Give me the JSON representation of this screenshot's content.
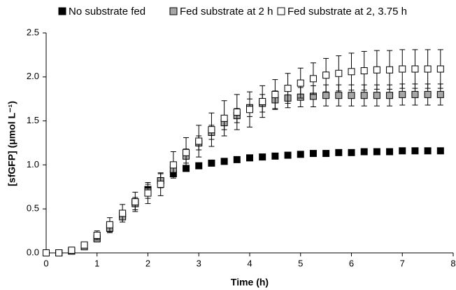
{
  "chart_data": {
    "type": "scatter",
    "xlabel": "Time (h)",
    "ylabel": "[sfGFP] (μmol L⁻¹)",
    "x": [
      0,
      0.25,
      0.5,
      0.75,
      1,
      1.25,
      1.5,
      1.75,
      2,
      2.25,
      2.5,
      2.75,
      3,
      3.25,
      3.5,
      3.75,
      4,
      4.25,
      4.5,
      4.75,
      5,
      5.25,
      5.5,
      5.75,
      6,
      6.25,
      6.5,
      6.75,
      7,
      7.25,
      7.5,
      7.75
    ],
    "xlim": [
      0,
      8
    ],
    "xticks": [
      0,
      1,
      2,
      3,
      4,
      5,
      6,
      7,
      8
    ],
    "ylim": [
      0,
      2.5
    ],
    "yticks": [
      {
        "value": 0,
        "label": "0.0"
      },
      0.5,
      {
        "value": 1,
        "label": "1.0"
      },
      1.5,
      {
        "value": 2,
        "label": "2.0"
      },
      2.5
    ],
    "series": [
      {
        "name": "No substrate fed",
        "color": "#000000",
        "values": [
          0,
          0,
          0.02,
          0.08,
          0.17,
          0.3,
          0.43,
          0.58,
          0.72,
          0.82,
          0.9,
          0.96,
          0.99,
          1.02,
          1.04,
          1.06,
          1.08,
          1.09,
          1.1,
          1.11,
          1.12,
          1.13,
          1.13,
          1.14,
          1.14,
          1.15,
          1.15,
          1.15,
          1.16,
          1.16,
          1.16,
          1.16
        ]
      },
      {
        "name": "Fed substrate at 2 h",
        "color": "#a6a6a6",
        "values": [
          0,
          0,
          0.02,
          0.07,
          0.16,
          0.28,
          0.41,
          0.56,
          0.7,
          0.82,
          0.95,
          1.1,
          1.25,
          1.37,
          1.48,
          1.56,
          1.65,
          1.7,
          1.74,
          1.76,
          1.77,
          1.78,
          1.79,
          1.79,
          1.79,
          1.79,
          1.79,
          1.79,
          1.8,
          1.8,
          1.8,
          1.8
        ],
        "errors": [
          0.01,
          0.01,
          0.01,
          0.02,
          0.03,
          0.05,
          0.06,
          0.07,
          0.08,
          0.08,
          0.08,
          0.08,
          0.08,
          0.08,
          0.08,
          0.08,
          0.1,
          0.1,
          0.1,
          0.11,
          0.11,
          0.12,
          0.12,
          0.12,
          0.12,
          0.12,
          0.12,
          0.12,
          0.12,
          0.12,
          0.12,
          0.12
        ]
      },
      {
        "name": "Fed substrate at 2, 3.75 h",
        "color": "#ffffff",
        "values": [
          0,
          0,
          0.03,
          0.09,
          0.2,
          0.32,
          0.45,
          0.58,
          0.68,
          0.78,
          1.0,
          1.14,
          1.27,
          1.4,
          1.53,
          1.6,
          1.63,
          1.72,
          1.8,
          1.87,
          1.93,
          1.98,
          2.02,
          2.04,
          2.06,
          2.07,
          2.08,
          2.08,
          2.09,
          2.09,
          2.09,
          2.09
        ],
        "errors": [
          0.01,
          0.01,
          0.02,
          0.03,
          0.05,
          0.08,
          0.1,
          0.11,
          0.12,
          0.13,
          0.15,
          0.17,
          0.18,
          0.19,
          0.2,
          0.2,
          0.2,
          0.18,
          0.17,
          0.17,
          0.17,
          0.18,
          0.19,
          0.2,
          0.21,
          0.22,
          0.22,
          0.22,
          0.22,
          0.22,
          0.22,
          0.22
        ]
      }
    ]
  }
}
